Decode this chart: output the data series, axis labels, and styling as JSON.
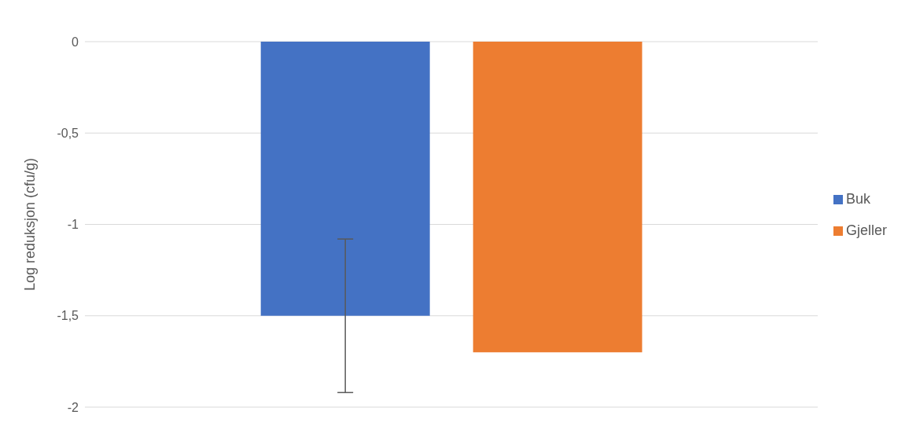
{
  "chart_data": {
    "type": "bar",
    "ylabel": "Log reduksjon (cfu/g)",
    "categories": [
      null
    ],
    "series": [
      {
        "name": "Buk",
        "color": "#4472c4",
        "values": [
          -1.5
        ],
        "errors": [
          0.42
        ]
      },
      {
        "name": "Gjeller",
        "color": "#ed7d31",
        "values": [
          -1.7
        ]
      }
    ],
    "ylim": [
      -2,
      0
    ],
    "yticks": [
      {
        "value": -2,
        "label": "-2"
      },
      {
        "value": -1.5,
        "label": "-1,5"
      },
      {
        "value": -1,
        "label": "-1"
      },
      {
        "value": -0.5,
        "label": "-0,5"
      },
      {
        "value": 0,
        "label": "0"
      }
    ],
    "grid": "y",
    "legend": "right"
  }
}
